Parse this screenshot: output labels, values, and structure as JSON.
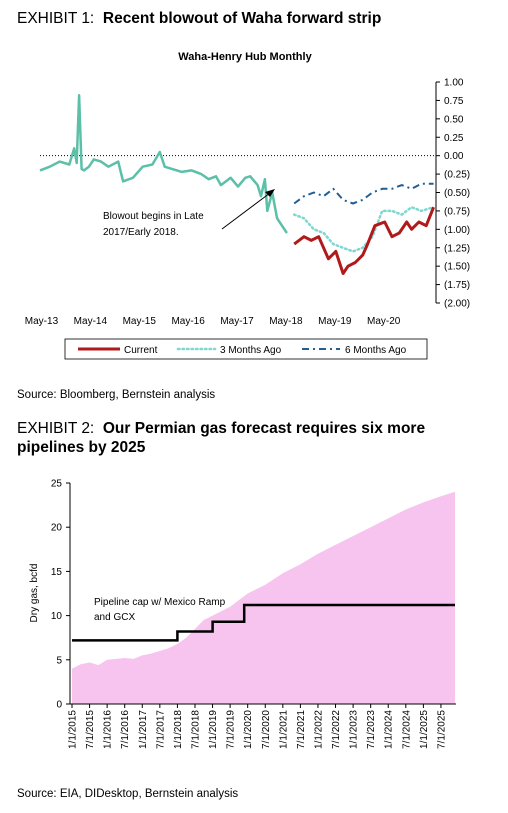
{
  "exhibit1": {
    "label": "EXHIBIT 1:",
    "title": "Recent blowout of Waha forward strip",
    "source": "Source: Bloomberg, Bernstein analysis"
  },
  "exhibit2": {
    "label": "EXHIBIT 2:",
    "title": "Our Permian gas forecast requires six more pipelines by 2025",
    "source": "Source: EIA, DIDesktop, Bernstein analysis"
  },
  "colors": {
    "history": "#5cbfa8",
    "current": "#b01a1a",
    "three_months_ago": "#7fd8d0",
    "six_months_ago": "#1f5f96",
    "forecast_fill": "#f7c3ef",
    "pipeline": "#000000"
  },
  "chart_data": [
    {
      "type": "line",
      "title": "Waha-Henry Hub Monthly",
      "x_tick_labels": [
        "May-13",
        "May-14",
        "May-15",
        "May-16",
        "May-17",
        "May-18",
        "May-19",
        "May-20"
      ],
      "y_tick_labels": [
        "1.00",
        "0.75",
        "0.50",
        "0.25",
        "0.00",
        "(0.25)",
        "(0.50)",
        "(0.75)",
        "(1.00)",
        "(1.25)",
        "(1.50)",
        "(1.75)",
        "(2.00)"
      ],
      "ylim": [
        -2.0,
        1.0
      ],
      "xlim": [
        2013.3,
        2021.4
      ],
      "annotation": "Blowout begins in Late 2017/Early 2018.",
      "annotation_lines": [
        "Blowout begins in Late",
        "2017/Early 2018."
      ],
      "legend": [
        "Current",
        "3 Months Ago",
        "6 Months Ago"
      ],
      "legend_position": "bottom",
      "series": [
        {
          "x": [
            2013.3,
            2013.5,
            2013.7,
            2013.9,
            2014.0,
            2014.05,
            2014.1,
            2014.15,
            2014.2,
            2014.3,
            2014.4,
            2014.55,
            2014.7,
            2014.9,
            2015.0,
            2015.2,
            2015.4,
            2015.6,
            2015.75,
            2015.85,
            2016.0,
            2016.2,
            2016.4,
            2016.6,
            2016.75,
            2016.9,
            2017.0,
            2017.2,
            2017.35,
            2017.5,
            2017.6,
            2017.75,
            2017.82,
            2017.9,
            2017.95,
            2018.05,
            2018.15,
            2018.25,
            2018.35
          ],
          "y": [
            -0.2,
            -0.15,
            -0.08,
            -0.12,
            0.1,
            -0.1,
            0.82,
            -0.18,
            -0.2,
            -0.15,
            -0.05,
            -0.08,
            -0.15,
            -0.08,
            -0.35,
            -0.3,
            -0.15,
            -0.12,
            0.05,
            -0.15,
            -0.18,
            -0.22,
            -0.2,
            -0.25,
            -0.32,
            -0.28,
            -0.4,
            -0.3,
            -0.42,
            -0.3,
            -0.28,
            -0.4,
            -0.55,
            -0.32,
            -0.75,
            -0.5,
            -0.85,
            -0.95,
            -1.05
          ]
        },
        {
          "name": "Current",
          "x": [
            2018.5,
            2018.7,
            2018.85,
            2019.0,
            2019.2,
            2019.35,
            2019.5,
            2019.6,
            2019.75,
            2019.9,
            2020.0,
            2020.15,
            2020.35,
            2020.5,
            2020.65,
            2020.8,
            2020.9,
            2021.05,
            2021.2,
            2021.35
          ],
          "y": [
            -1.2,
            -1.1,
            -1.15,
            -1.1,
            -1.4,
            -1.3,
            -1.6,
            -1.5,
            -1.45,
            -1.35,
            -1.2,
            -0.95,
            -0.9,
            -1.1,
            -1.05,
            -0.9,
            -1.0,
            -0.9,
            -0.95,
            -0.7
          ]
        },
        {
          "name": "3 Months Ago",
          "x": [
            2018.5,
            2018.7,
            2018.9,
            2019.1,
            2019.3,
            2019.5,
            2019.7,
            2019.9,
            2020.1,
            2020.3,
            2020.5,
            2020.7,
            2020.9,
            2021.1,
            2021.35
          ],
          "y": [
            -0.8,
            -0.85,
            -1.0,
            -1.05,
            -1.2,
            -1.25,
            -1.3,
            -1.25,
            -1.1,
            -0.75,
            -0.75,
            -0.8,
            -0.7,
            -0.75,
            -0.7
          ]
        },
        {
          "name": "6 Months Ago",
          "x": [
            2018.5,
            2018.7,
            2018.9,
            2019.1,
            2019.3,
            2019.5,
            2019.7,
            2019.9,
            2020.1,
            2020.3,
            2020.5,
            2020.7,
            2020.9,
            2021.1,
            2021.35
          ],
          "y": [
            -0.65,
            -0.55,
            -0.5,
            -0.55,
            -0.45,
            -0.6,
            -0.65,
            -0.6,
            -0.5,
            -0.45,
            -0.45,
            -0.4,
            -0.45,
            -0.38,
            -0.38
          ]
        }
      ]
    },
    {
      "type": "area",
      "ylabel": "Dry gas, bcfd",
      "ylim": [
        0,
        25
      ],
      "y_tick_labels": [
        "0",
        "5",
        "10",
        "15",
        "20",
        "25"
      ],
      "x_tick_labels": [
        "1/1/2015",
        "7/1/2015",
        "1/1/2016",
        "7/1/2016",
        "1/1/2017",
        "7/1/2017",
        "1/1/2018",
        "7/1/2018",
        "1/1/2019",
        "7/1/2019",
        "1/1/2020",
        "7/1/2020",
        "1/1/2021",
        "7/1/2021",
        "1/1/2022",
        "7/1/2022",
        "1/1/2023",
        "7/1/2023",
        "1/1/2024",
        "7/1/2024",
        "1/1/2025",
        "7/1/2025"
      ],
      "annotation": "Pipeline cap w/ Mexico Ramp and GCX",
      "annotation_lines": [
        "Pipeline cap w/ Mexico Ramp",
        "and GCX"
      ],
      "series": [
        {
          "x": [
            2015.0,
            2015.25,
            2015.5,
            2015.75,
            2016.0,
            2016.25,
            2016.5,
            2016.75,
            2017.0,
            2017.25,
            2017.5,
            2017.75,
            2018.0,
            2018.25,
            2018.5,
            2018.75,
            2019.0,
            2019.5,
            2020.0,
            2020.5,
            2021.0,
            2021.5,
            2022.0,
            2022.5,
            2023.0,
            2023.5,
            2024.0,
            2024.5,
            2025.0,
            2025.5,
            2025.9
          ],
          "y": [
            4.0,
            4.5,
            4.7,
            4.4,
            5.0,
            5.1,
            5.2,
            5.1,
            5.5,
            5.7,
            6.0,
            6.3,
            6.8,
            7.5,
            8.5,
            9.5,
            10.0,
            11.0,
            12.5,
            13.5,
            14.8,
            15.8,
            17.0,
            18.0,
            19.0,
            20.0,
            21.0,
            22.0,
            22.8,
            23.5,
            24.0
          ]
        },
        {
          "x": [
            2015.0,
            2018.0,
            2018.0,
            2019.0,
            2019.0,
            2019.9,
            2019.9,
            2025.9
          ],
          "y": [
            7.2,
            7.2,
            8.2,
            8.2,
            9.3,
            9.3,
            11.2,
            11.2
          ]
        }
      ]
    }
  ]
}
